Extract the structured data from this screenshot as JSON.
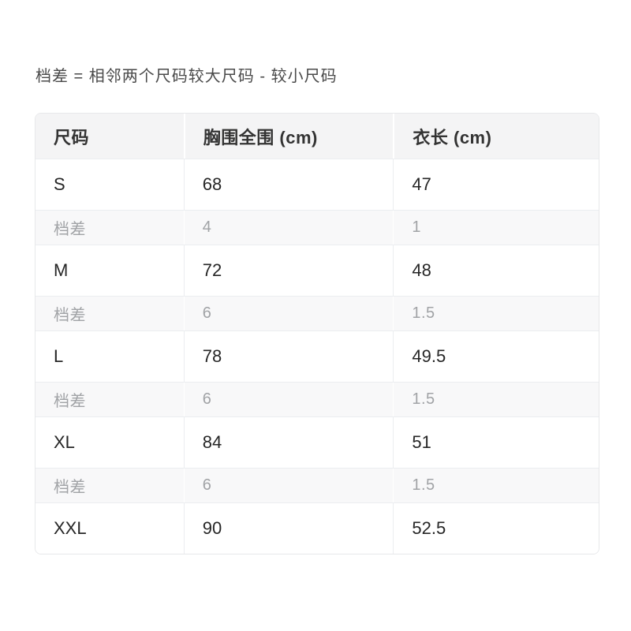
{
  "note": {
    "text": "档差 = 相邻两个尺码较大尺码 - 较小尺码"
  },
  "table": {
    "columns": [
      "尺码",
      "胸围全围 (cm)",
      "衣长 (cm)"
    ],
    "rows": [
      {
        "type": "size",
        "cells": [
          "S",
          "68",
          "47"
        ]
      },
      {
        "type": "diff",
        "cells": [
          "档差",
          "4",
          "1"
        ]
      },
      {
        "type": "size",
        "cells": [
          "M",
          "72",
          "48"
        ]
      },
      {
        "type": "diff",
        "cells": [
          "档差",
          "6",
          "1.5"
        ]
      },
      {
        "type": "size",
        "cells": [
          "L",
          "78",
          "49.5"
        ]
      },
      {
        "type": "diff",
        "cells": [
          "档差",
          "6",
          "1.5"
        ]
      },
      {
        "type": "size",
        "cells": [
          "XL",
          "84",
          "51"
        ]
      },
      {
        "type": "diff",
        "cells": [
          "档差",
          "6",
          "1.5"
        ]
      },
      {
        "type": "size",
        "cells": [
          "XXL",
          "90",
          "52.5"
        ]
      }
    ],
    "colors": {
      "header_bg": "#f4f4f5",
      "diff_row_bg": "#f8f8f9",
      "row_border": "#ebedf0",
      "outer_border": "#e7e8ea",
      "header_text": "#333333",
      "body_text": "#262626",
      "diff_text": "#a1a3a6",
      "note_text": "#4a4a4a",
      "page_bg": "#ffffff"
    }
  }
}
